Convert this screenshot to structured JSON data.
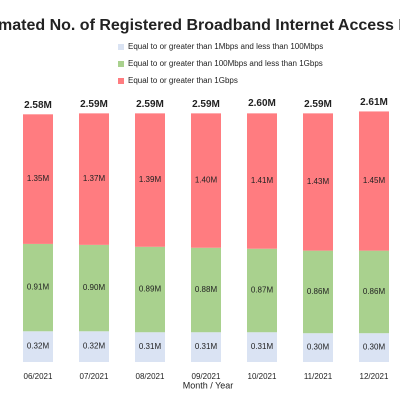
{
  "chart_data": {
    "type": "stacked_bar",
    "title": "mated No. of Registered Broadband Internet Access Lines (",
    "x_label": "Month / Year",
    "categories": [
      "06/2021",
      "07/2021",
      "08/2021",
      "09/2021",
      "10/2021",
      "11/2021",
      "12/2021"
    ],
    "series": [
      {
        "name": "Equal to or greater than 1Mbps and less than 100Mbps",
        "color": "#dae3f3",
        "values": [
          0.32,
          0.32,
          0.31,
          0.31,
          0.31,
          0.3,
          0.3
        ],
        "value_labels": [
          "0.32M",
          "0.32M",
          "0.31M",
          "0.31M",
          "0.31M",
          "0.30M",
          "0.30M"
        ]
      },
      {
        "name": "Equal to or greater than 100Mbps and less than 1Gbps",
        "color": "#a9d18e",
        "values": [
          0.91,
          0.9,
          0.89,
          0.88,
          0.87,
          0.86,
          0.86
        ],
        "value_labels": [
          "0.91M",
          "0.90M",
          "0.89M",
          "0.88M",
          "0.87M",
          "0.86M",
          "0.86M"
        ]
      },
      {
        "name": "Equal to or greater than 1Gbps",
        "color": "#ff7c80",
        "values": [
          1.35,
          1.37,
          1.39,
          1.4,
          1.41,
          1.43,
          1.45
        ],
        "value_labels": [
          "1.35M",
          "1.37M",
          "1.39M",
          "1.40M",
          "1.41M",
          "1.43M",
          "1.45M"
        ]
      }
    ],
    "totals": {
      "values": [
        2.58,
        2.59,
        2.59,
        2.59,
        2.6,
        2.59,
        2.61
      ],
      "value_labels": [
        "2.58M",
        "2.59M",
        "2.59M",
        "2.59M",
        "2.60M",
        "2.59M",
        "2.61M"
      ]
    },
    "legend": "top-right"
  }
}
